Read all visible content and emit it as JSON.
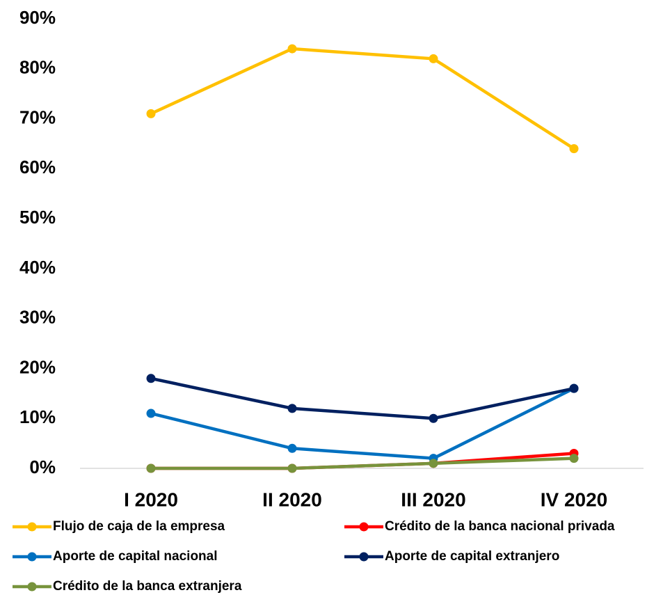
{
  "chart_data": {
    "type": "line",
    "categories": [
      "I 2020",
      "II 2020",
      "III 2020",
      "IV 2020"
    ],
    "series": [
      {
        "name": "Flujo de caja de la empresa",
        "color": "#FFC000",
        "values": [
          71,
          84,
          82,
          64
        ]
      },
      {
        "name": "Crédito de la banca nacional privada",
        "color": "#FF0000",
        "values": [
          0,
          0,
          1,
          3
        ]
      },
      {
        "name": "Aporte de capital nacional",
        "color": "#0070C0",
        "values": [
          11,
          4,
          2,
          16
        ]
      },
      {
        "name": "Aporte de capital extranjero",
        "color": "#002060",
        "values": [
          18,
          12,
          10,
          16
        ]
      },
      {
        "name": "Crédito de la banca extranjera",
        "color": "#77933C",
        "values": [
          0,
          0,
          1,
          2
        ]
      }
    ],
    "ylim": [
      0,
      90
    ],
    "yticks": [
      {
        "value": 0,
        "label": "0%"
      },
      {
        "value": 10,
        "label": "10%"
      },
      {
        "value": 20,
        "label": "20%"
      },
      {
        "value": 30,
        "label": "30%"
      },
      {
        "value": 40,
        "label": "40%"
      },
      {
        "value": 50,
        "label": "50%"
      },
      {
        "value": 60,
        "label": "60%"
      },
      {
        "value": 70,
        "label": "70%"
      },
      {
        "value": 80,
        "label": "80%"
      },
      {
        "value": 90,
        "label": "90%"
      }
    ],
    "grid": false,
    "legend": "bottom"
  }
}
